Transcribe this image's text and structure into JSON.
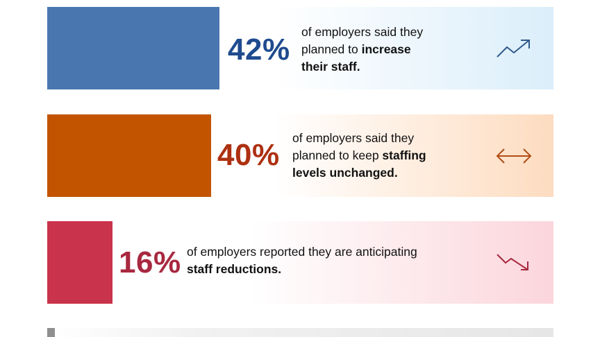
{
  "chart_data": {
    "type": "bar",
    "categories": [
      "increase their staff",
      "keep staffing levels unchanged",
      "staff reductions"
    ],
    "values": [
      42,
      40,
      16
    ],
    "unit": "%",
    "scale_max": 100,
    "colors": [
      "#4a76b0",
      "#c25400",
      "#c9334b"
    ],
    "pct_colors": [
      "#1f4b8e",
      "#ad3011",
      "#a8283f"
    ]
  },
  "rows": [
    {
      "pct": "42%",
      "text_line1": "of employers said they",
      "text_line2_plain": "planned to ",
      "text_line2_bold": "increase",
      "text_line3_bold": "their staff.",
      "icon": "trend-up-icon"
    },
    {
      "pct": "40%",
      "text_line1": "of employers said they",
      "text_line2_plain": "planned to keep ",
      "text_line2_bold": "staffing",
      "text_line3_bold": "levels unchanged.",
      "icon": "left-right-arrow-icon"
    },
    {
      "pct": "16%",
      "text_line1": "of employers reported they are anticipating",
      "text_line2_bold": "staff reductions.",
      "icon": "trend-down-icon"
    }
  ]
}
